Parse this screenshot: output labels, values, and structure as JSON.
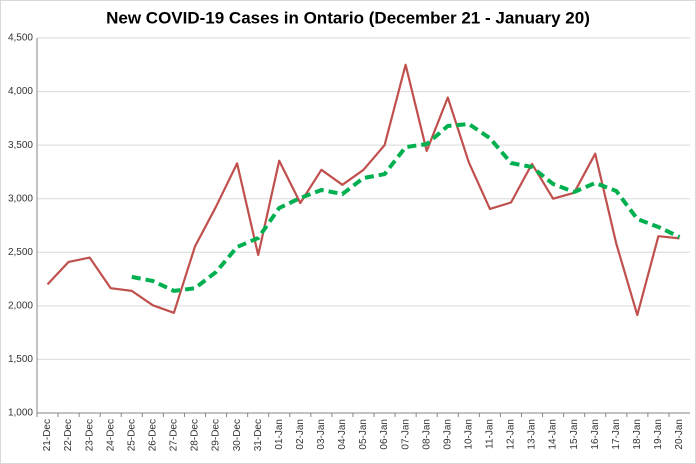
{
  "chart_data": {
    "type": "line",
    "title": "New COVID-19 Cases in Ontario (December 21 - January 20)",
    "categories": [
      "21-Dec",
      "22-Dec",
      "23-Dec",
      "24-Dec",
      "25-Dec",
      "26-Dec",
      "27-Dec",
      "28-Dec",
      "29-Dec",
      "30-Dec",
      "31-Dec",
      "01-Jan",
      "02-Jan",
      "03-Jan",
      "04-Jan",
      "05-Jan",
      "06-Jan",
      "07-Jan",
      "08-Jan",
      "09-Jan",
      "10-Jan",
      "11-Jan",
      "12-Jan",
      "13-Jan",
      "14-Jan",
      "15-Jan",
      "16-Jan",
      "17-Jan",
      "18-Jan",
      "19-Jan",
      "20-Jan"
    ],
    "series": [
      {
        "color": "#c0504d",
        "dashed": false,
        "values": [
          2200,
          2410,
          2450,
          2165,
          2140,
          2005,
          1935,
          2555,
          2925,
          3330,
          2475,
          3355,
          2960,
          3270,
          3130,
          3270,
          3500,
          4250,
          3445,
          3945,
          3340,
          2905,
          2965,
          3325,
          3000,
          3055,
          3420,
          2580,
          1915,
          2650,
          2630
        ]
      },
      {
        "color": "#00b050",
        "dashed": true,
        "values": [
          null,
          null,
          null,
          null,
          2270,
          2232,
          2140,
          2165,
          2316,
          2549,
          2633,
          2913,
          3007,
          3081,
          3044,
          3193,
          3230,
          3482,
          3510,
          3679,
          3697,
          3566,
          3333,
          3296,
          3137,
          3063,
          3147,
          3072,
          2811,
          2736,
          2643
        ]
      }
    ],
    "ylim": [
      1000,
      4500
    ],
    "yticks": [
      {
        "value": 1000,
        "label": "1,000"
      },
      {
        "value": 1500,
        "label": "1,500"
      },
      {
        "value": 2000,
        "label": "2,000"
      },
      {
        "value": 2500,
        "label": "2,500"
      },
      {
        "value": 3000,
        "label": "3,000"
      },
      {
        "value": 3500,
        "label": "3,500"
      },
      {
        "value": 4000,
        "label": "4,000"
      },
      {
        "value": 4500,
        "label": "4,500"
      }
    ],
    "grid": true
  }
}
